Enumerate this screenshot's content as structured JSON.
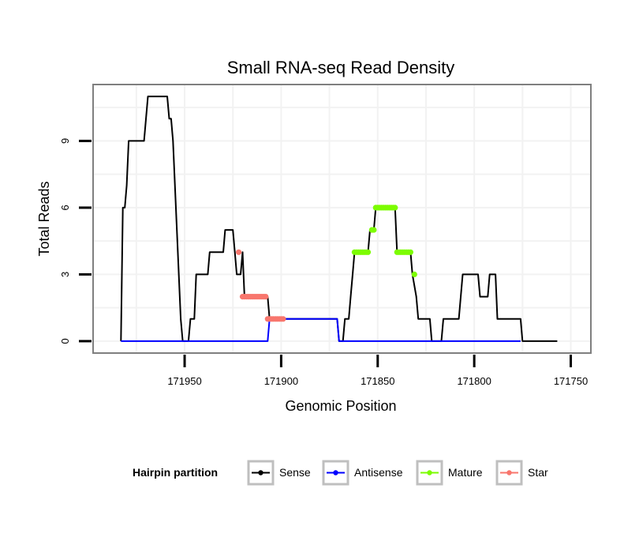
{
  "chart_data": {
    "type": "line",
    "title": "Small RNA-seq Read Density",
    "xlabel": "Genomic Position",
    "ylabel": "Total Reads",
    "x_reversed": true,
    "xlim": [
      171997,
      171740
    ],
    "ylim": [
      -0.5,
      11.5
    ],
    "x_ticks": [
      171950,
      171900,
      171850,
      171800,
      171750
    ],
    "x_tick_labels": [
      "171950",
      "171900",
      "171850",
      "171800",
      "171750"
    ],
    "y_ticks": [
      0,
      3,
      6,
      9
    ],
    "y_tick_labels": [
      "0",
      "3",
      "6",
      "9"
    ],
    "grid": true,
    "legend": {
      "title": "Hairpin partition",
      "position": "bottom",
      "entries": [
        {
          "label": "Sense",
          "color": "#000000"
        },
        {
          "label": "Antisense",
          "color": "#0000ff"
        },
        {
          "label": "Mature",
          "color": "#7cfc00"
        },
        {
          "label": "Star",
          "color": "#f8766d"
        }
      ]
    },
    "series": [
      {
        "name": "Sense",
        "color": "#000000",
        "style": "line",
        "points": [
          [
            171983,
            0
          ],
          [
            171982,
            6
          ],
          [
            171981,
            6
          ],
          [
            171980,
            7
          ],
          [
            171979,
            9
          ],
          [
            171971,
            9
          ],
          [
            171969,
            11
          ],
          [
            171959,
            11
          ],
          [
            171958,
            10
          ],
          [
            171957,
            10
          ],
          [
            171956,
            9
          ],
          [
            171954,
            5
          ],
          [
            171952,
            1
          ],
          [
            171951,
            0
          ],
          [
            171948,
            0
          ],
          [
            171947,
            1
          ],
          [
            171945,
            1
          ],
          [
            171944,
            3
          ],
          [
            171938,
            3
          ],
          [
            171937,
            4
          ],
          [
            171930,
            4
          ],
          [
            171929,
            5
          ],
          [
            171925,
            5
          ],
          [
            171924,
            4
          ],
          [
            171923,
            3
          ],
          [
            171921,
            3
          ],
          [
            171920,
            4
          ],
          [
            171919,
            2
          ],
          [
            171907,
            2
          ],
          [
            171906,
            1
          ],
          [
            171871,
            1
          ],
          [
            171870,
            0
          ],
          [
            171868,
            0
          ],
          [
            171867,
            1
          ],
          [
            171865,
            1
          ],
          [
            171864,
            2
          ],
          [
            171863,
            3
          ],
          [
            171862,
            4
          ],
          [
            171855,
            4
          ],
          [
            171854,
            5
          ],
          [
            171852,
            5
          ],
          [
            171851,
            6
          ],
          [
            171841,
            6
          ],
          [
            171840,
            4
          ],
          [
            171833,
            4
          ],
          [
            171832,
            3
          ],
          [
            171830,
            2
          ],
          [
            171829,
            1
          ],
          [
            171823,
            1
          ],
          [
            171822,
            0
          ],
          [
            171817,
            0
          ],
          [
            171816,
            1
          ],
          [
            171808,
            1
          ],
          [
            171806,
            3
          ],
          [
            171798,
            3
          ],
          [
            171797,
            2
          ],
          [
            171793,
            2
          ],
          [
            171792,
            3
          ],
          [
            171789,
            3
          ],
          [
            171788,
            1
          ],
          [
            171776,
            1
          ],
          [
            171775,
            0
          ],
          [
            171757,
            0
          ]
        ]
      },
      {
        "name": "Antisense",
        "color": "#0000ff",
        "style": "line",
        "points": [
          [
            171983,
            0
          ],
          [
            171907,
            0
          ],
          [
            171906,
            1
          ],
          [
            171871,
            1
          ],
          [
            171870,
            0
          ],
          [
            171776,
            0
          ]
        ]
      },
      {
        "name": "Mature",
        "color": "#7cfc00",
        "style": "points",
        "points": [
          [
            171862,
            4
          ],
          [
            171861,
            4
          ],
          [
            171860,
            4
          ],
          [
            171859,
            4
          ],
          [
            171858,
            4
          ],
          [
            171857,
            4
          ],
          [
            171856,
            4
          ],
          [
            171855,
            4
          ],
          [
            171853,
            5
          ],
          [
            171852,
            5
          ],
          [
            171851,
            6
          ],
          [
            171850,
            6
          ],
          [
            171849,
            6
          ],
          [
            171848,
            6
          ],
          [
            171847,
            6
          ],
          [
            171846,
            6
          ],
          [
            171845,
            6
          ],
          [
            171844,
            6
          ],
          [
            171843,
            6
          ],
          [
            171842,
            6
          ],
          [
            171841,
            6
          ],
          [
            171840,
            4
          ],
          [
            171839,
            4
          ],
          [
            171838,
            4
          ],
          [
            171837,
            4
          ],
          [
            171836,
            4
          ],
          [
            171835,
            4
          ],
          [
            171834,
            4
          ],
          [
            171833,
            4
          ],
          [
            171831,
            3
          ]
        ]
      },
      {
        "name": "Star",
        "color": "#f8766d",
        "style": "points",
        "points": [
          [
            171922,
            4
          ],
          [
            171920,
            2
          ],
          [
            171919,
            2
          ],
          [
            171918,
            2
          ],
          [
            171917,
            2
          ],
          [
            171916,
            2
          ],
          [
            171915,
            2
          ],
          [
            171914,
            2
          ],
          [
            171913,
            2
          ],
          [
            171912,
            2
          ],
          [
            171911,
            2
          ],
          [
            171910,
            2
          ],
          [
            171909,
            2
          ],
          [
            171908,
            2
          ],
          [
            171907,
            1
          ],
          [
            171906,
            1
          ],
          [
            171905,
            1
          ],
          [
            171904,
            1
          ],
          [
            171903,
            1
          ],
          [
            171902,
            1
          ],
          [
            171901,
            1
          ],
          [
            171900,
            1
          ],
          [
            171899,
            1
          ]
        ]
      }
    ]
  }
}
